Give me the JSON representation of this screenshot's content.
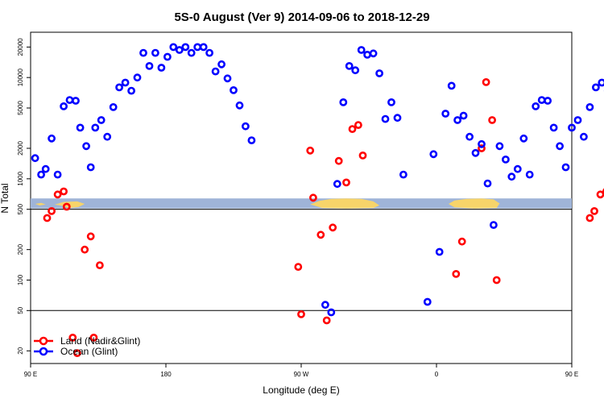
{
  "chart_data": {
    "type": "scatter",
    "title": "5S-0 August (Ver 9)   2014-09-06 to 2018-12-29",
    "xlabel": "Longitude (deg E)",
    "ylabel": "N Total",
    "x_axis": {
      "range_deg_east": [
        90,
        450
      ],
      "ticks": [
        {
          "value": 90,
          "label": "90 E"
        },
        {
          "value": 180,
          "label": "180"
        },
        {
          "value": 270,
          "label": "90 W"
        },
        {
          "value": 360,
          "label": "0"
        },
        {
          "value": 450,
          "label": "90 E"
        },
        {
          "value": 540,
          "label": "180"
        }
      ]
    },
    "y_axis": {
      "scale": "log",
      "range": [
        15,
        28000
      ],
      "ticks": [
        20,
        50,
        100,
        200,
        500,
        1000,
        2000,
        5000,
        10000,
        20000
      ],
      "reference_lines": [
        50,
        500
      ]
    },
    "legend": {
      "position": "bottom-left",
      "entries": [
        {
          "name": "Land (Nadir&Glint)",
          "color": "#ff0000"
        },
        {
          "name": "Ocean (Glint)",
          "color": "#0000ff"
        }
      ]
    },
    "latitude_band": {
      "value_low": 510,
      "value_high": 640,
      "ocean_color": "#9fb4d8",
      "land_color": "#f7d46a"
    },
    "series": [
      {
        "name": "Land (Nadir&Glint)",
        "color": "#ff0000",
        "points": [
          [
            101,
            410
          ],
          [
            104,
            480
          ],
          [
            108,
            700
          ],
          [
            112,
            750
          ],
          [
            114,
            530
          ],
          [
            118,
            27
          ],
          [
            121,
            19
          ],
          [
            126,
            200
          ],
          [
            130,
            270
          ],
          [
            132,
            27
          ],
          [
            136,
            140
          ],
          [
            268,
            135
          ],
          [
            270,
            46
          ],
          [
            276,
            1900
          ],
          [
            278,
            650
          ],
          [
            283,
            280
          ],
          [
            287,
            40
          ],
          [
            291,
            330
          ],
          [
            295,
            1500
          ],
          [
            300,
            920
          ],
          [
            304,
            3100
          ],
          [
            308,
            3400
          ],
          [
            311,
            1700
          ],
          [
            373,
            115
          ],
          [
            377,
            240
          ],
          [
            390,
            2000
          ],
          [
            393,
            9000
          ],
          [
            397,
            3800
          ],
          [
            400,
            100
          ],
          [
            462,
            410
          ],
          [
            465,
            480
          ],
          [
            469,
            700
          ],
          [
            473,
            750
          ],
          [
            475,
            530
          ],
          [
            479,
            27
          ],
          [
            482,
            19
          ],
          [
            487,
            200
          ],
          [
            490,
            270
          ],
          [
            493,
            27
          ],
          [
            497,
            140
          ]
        ]
      },
      {
        "name": "Ocean (Glint)",
        "color": "#0000ff",
        "points": [
          [
            93,
            1600
          ],
          [
            97,
            1100
          ],
          [
            100,
            1250
          ],
          [
            104,
            2500
          ],
          [
            108,
            1100
          ],
          [
            112,
            5200
          ],
          [
            116,
            6000
          ],
          [
            120,
            5900
          ],
          [
            123,
            3200
          ],
          [
            127,
            2100
          ],
          [
            130,
            1300
          ],
          [
            133,
            3200
          ],
          [
            137,
            3800
          ],
          [
            141,
            2600
          ],
          [
            145,
            5100
          ],
          [
            149,
            8000
          ],
          [
            153,
            8900
          ],
          [
            157,
            7400
          ],
          [
            161,
            10000
          ],
          [
            165,
            17500
          ],
          [
            169,
            13000
          ],
          [
            173,
            17500
          ],
          [
            177,
            12500
          ],
          [
            181,
            16000
          ],
          [
            185,
            20000
          ],
          [
            189,
            18700
          ],
          [
            193,
            20000
          ],
          [
            197,
            17500
          ],
          [
            201,
            20000
          ],
          [
            205,
            20000
          ],
          [
            209,
            17500
          ],
          [
            213,
            11500
          ],
          [
            217,
            13500
          ],
          [
            221,
            9800
          ],
          [
            225,
            7500
          ],
          [
            229,
            5300
          ],
          [
            233,
            3300
          ],
          [
            237,
            2400
          ],
          [
            286,
            57
          ],
          [
            290,
            48
          ],
          [
            294,
            890
          ],
          [
            298,
            5700
          ],
          [
            302,
            13000
          ],
          [
            306,
            11800
          ],
          [
            310,
            18700
          ],
          [
            314,
            16800
          ],
          [
            318,
            17300
          ],
          [
            322,
            11000
          ],
          [
            326,
            3900
          ],
          [
            330,
            5700
          ],
          [
            334,
            4000
          ],
          [
            338,
            1100
          ],
          [
            354,
            61
          ],
          [
            358,
            1750
          ],
          [
            362,
            190
          ],
          [
            366,
            4400
          ],
          [
            370,
            8300
          ],
          [
            374,
            3800
          ],
          [
            378,
            4200
          ],
          [
            382,
            2600
          ],
          [
            386,
            1800
          ],
          [
            390,
            2200
          ],
          [
            394,
            900
          ],
          [
            398,
            350
          ],
          [
            402,
            2100
          ],
          [
            406,
            1550
          ],
          [
            410,
            1050
          ],
          [
            414,
            1250
          ],
          [
            418,
            2500
          ],
          [
            422,
            1100
          ],
          [
            426,
            5200
          ],
          [
            430,
            6000
          ],
          [
            434,
            5900
          ],
          [
            438,
            3200
          ],
          [
            442,
            2100
          ],
          [
            446,
            1300
          ],
          [
            450,
            3200
          ],
          [
            454,
            3800
          ],
          [
            458,
            2600
          ],
          [
            462,
            5100
          ],
          [
            466,
            8000
          ],
          [
            470,
            8900
          ],
          [
            474,
            7400
          ]
        ]
      }
    ]
  }
}
